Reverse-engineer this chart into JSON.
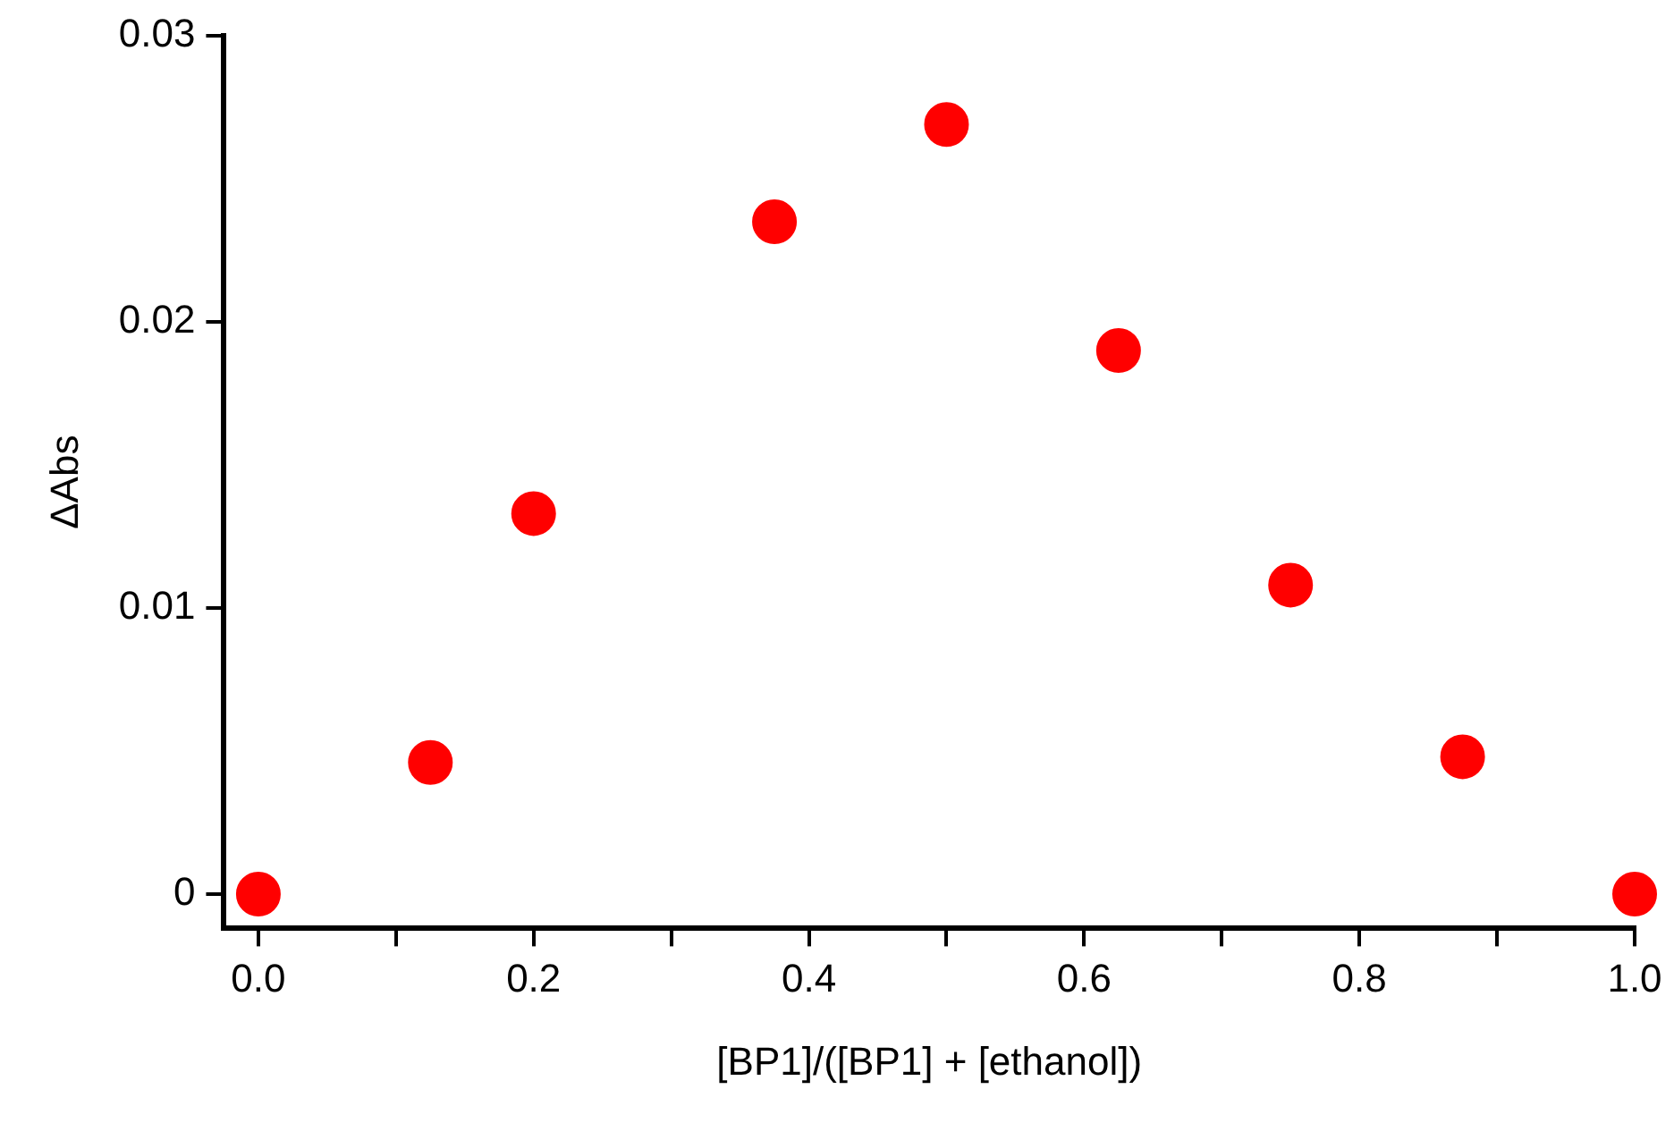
{
  "chart_data": {
    "type": "scatter",
    "xlabel": "[BP1]/([BP1] + [ethanol])",
    "ylabel": "ΔAbs",
    "series": [
      {
        "color": "#ff0000",
        "x": [
          0,
          0.125,
          0.2,
          0.375,
          0.5,
          0.625,
          0.75,
          0.875,
          1.0
        ],
        "values": [
          0,
          0.0046,
          0.0133,
          0.0235,
          0.0269,
          0.019,
          0.0108,
          0.0048,
          0
        ]
      }
    ],
    "xlim": [
      -0.025,
      1.0
    ],
    "ylim": [
      -0.0012,
      0.03
    ],
    "xticks": [
      {
        "value": 0,
        "label": "0.0"
      },
      {
        "value": 0.1,
        "label": null
      },
      {
        "value": 0.2,
        "label": "0.2"
      },
      {
        "value": 0.3,
        "label": null
      },
      {
        "value": 0.4,
        "label": "0.4"
      },
      {
        "value": 0.5,
        "label": null
      },
      {
        "value": 0.6,
        "label": "0.6"
      },
      {
        "value": 0.7,
        "label": null
      },
      {
        "value": 0.8,
        "label": "0.8"
      },
      {
        "value": 0.9,
        "label": null
      },
      {
        "value": 1.0,
        "label": "1.0"
      }
    ],
    "yticks": [
      0,
      0.01,
      0.02,
      0.03
    ],
    "grid": false,
    "legend": false,
    "marker": "circle"
  }
}
